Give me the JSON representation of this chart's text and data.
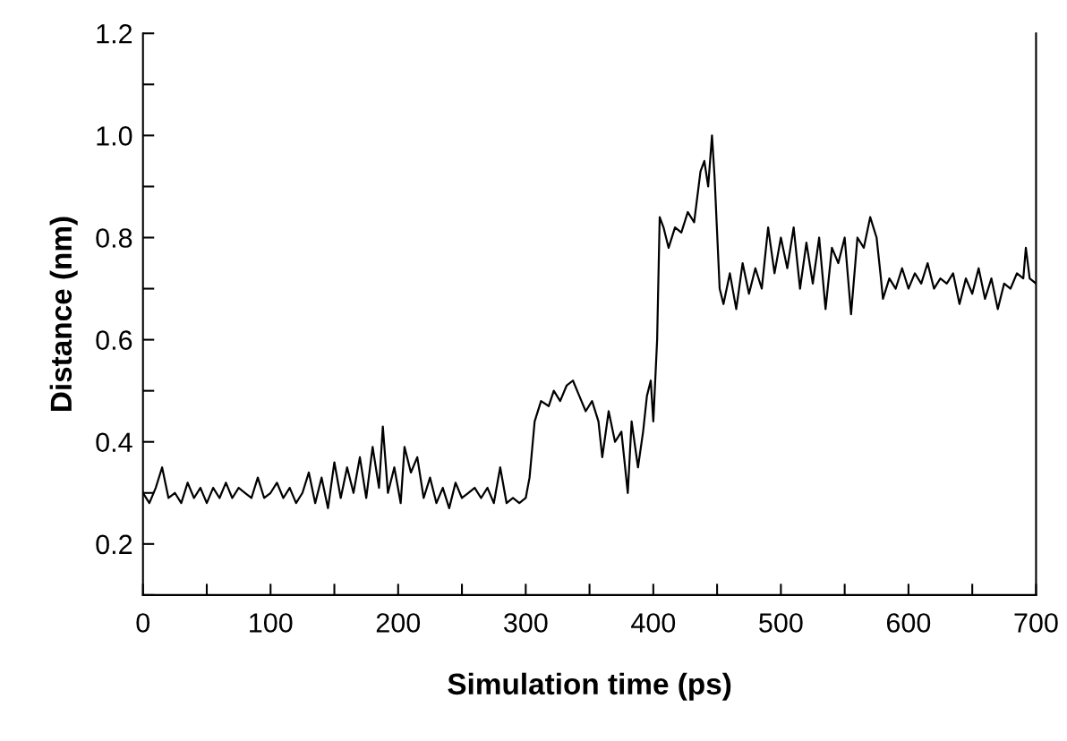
{
  "chart_data": {
    "type": "line",
    "xlabel": "Simulation time (ps)",
    "ylabel": "Distance (nm)",
    "xlim": [
      0,
      700
    ],
    "ylim": [
      0.1,
      1.2
    ],
    "xticks": [
      0,
      {
        "value": 50,
        "label": null
      },
      100,
      {
        "value": 150,
        "label": null
      },
      200,
      {
        "value": 250,
        "label": null
      },
      300,
      {
        "value": 350,
        "label": null
      },
      400,
      {
        "value": 450,
        "label": null
      },
      500,
      {
        "value": 550,
        "label": null
      },
      600,
      {
        "value": 650,
        "label": null
      },
      700
    ],
    "yticks": [
      {
        "value": 0.1,
        "label": null
      },
      0.2,
      {
        "value": 0.3,
        "label": null
      },
      0.4,
      {
        "value": 0.5,
        "label": null
      },
      0.6,
      {
        "value": 0.7,
        "label": null
      },
      0.8,
      {
        "value": 0.9,
        "label": null
      },
      {
        "value": 1.0,
        "label": "1.0"
      },
      {
        "value": 1.1,
        "label": null
      },
      1.2
    ],
    "grid": false,
    "legend": false,
    "marker": "none",
    "line_style": "solid",
    "series": [
      {
        "color": "#000000",
        "x": [
          0,
          5,
          10,
          15,
          20,
          25,
          30,
          35,
          40,
          45,
          50,
          55,
          60,
          65,
          70,
          75,
          80,
          85,
          90,
          95,
          100,
          105,
          110,
          115,
          120,
          125,
          130,
          135,
          140,
          145,
          150,
          155,
          160,
          165,
          170,
          175,
          180,
          185,
          188,
          192,
          197,
          202,
          205,
          210,
          215,
          220,
          225,
          230,
          235,
          240,
          245,
          250,
          255,
          260,
          265,
          270,
          275,
          280,
          285,
          290,
          295,
          300,
          303,
          307,
          312,
          318,
          322,
          327,
          332,
          337,
          342,
          347,
          352,
          357,
          360,
          365,
          370,
          375,
          380,
          383,
          388,
          392,
          395,
          398,
          400,
          403,
          405,
          408,
          412,
          417,
          422,
          427,
          432,
          437,
          440,
          443,
          446,
          448,
          452,
          455,
          460,
          465,
          470,
          475,
          480,
          485,
          490,
          495,
          500,
          505,
          510,
          515,
          520,
          525,
          530,
          535,
          540,
          545,
          550,
          555,
          560,
          565,
          570,
          575,
          578,
          580,
          585,
          590,
          595,
          600,
          605,
          610,
          615,
          620,
          625,
          630,
          635,
          640,
          645,
          650,
          655,
          660,
          665,
          670,
          675,
          680,
          685,
          690,
          692,
          695,
          700
        ],
        "values": [
          0.3,
          0.28,
          0.31,
          0.35,
          0.29,
          0.3,
          0.28,
          0.32,
          0.29,
          0.31,
          0.28,
          0.31,
          0.29,
          0.32,
          0.29,
          0.31,
          0.3,
          0.29,
          0.33,
          0.29,
          0.3,
          0.32,
          0.29,
          0.31,
          0.28,
          0.3,
          0.34,
          0.28,
          0.33,
          0.27,
          0.36,
          0.29,
          0.35,
          0.3,
          0.37,
          0.29,
          0.39,
          0.31,
          0.43,
          0.3,
          0.35,
          0.28,
          0.39,
          0.34,
          0.37,
          0.29,
          0.33,
          0.28,
          0.31,
          0.27,
          0.32,
          0.29,
          0.3,
          0.31,
          0.29,
          0.31,
          0.28,
          0.35,
          0.28,
          0.29,
          0.28,
          0.29,
          0.33,
          0.44,
          0.48,
          0.47,
          0.5,
          0.48,
          0.51,
          0.52,
          0.49,
          0.46,
          0.48,
          0.44,
          0.37,
          0.46,
          0.4,
          0.42,
          0.3,
          0.44,
          0.35,
          0.42,
          0.49,
          0.52,
          0.44,
          0.6,
          0.84,
          0.82,
          0.78,
          0.82,
          0.81,
          0.85,
          0.83,
          0.93,
          0.95,
          0.9,
          1.0,
          0.92,
          0.7,
          0.67,
          0.73,
          0.66,
          0.75,
          0.69,
          0.74,
          0.7,
          0.82,
          0.73,
          0.8,
          0.74,
          0.82,
          0.7,
          0.79,
          0.71,
          0.8,
          0.66,
          0.78,
          0.75,
          0.8,
          0.65,
          0.8,
          0.78,
          0.84,
          0.8,
          0.73,
          0.68,
          0.72,
          0.7,
          0.74,
          0.7,
          0.73,
          0.71,
          0.75,
          0.7,
          0.72,
          0.71,
          0.73,
          0.67,
          0.72,
          0.69,
          0.74,
          0.68,
          0.72,
          0.66,
          0.71,
          0.7,
          0.73,
          0.72,
          0.78,
          0.72,
          0.71
        ]
      }
    ]
  }
}
